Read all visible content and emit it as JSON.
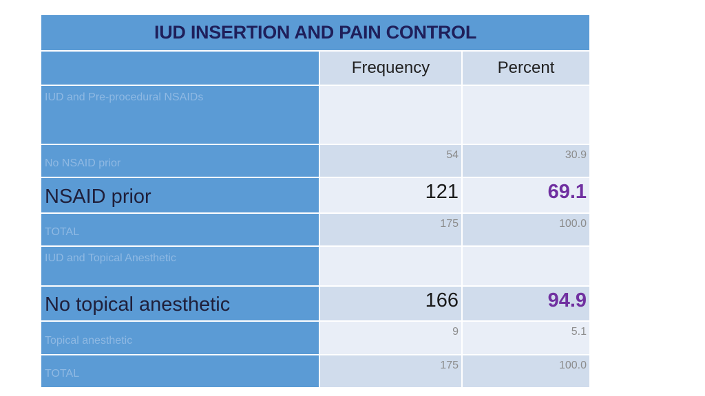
{
  "table": {
    "title": "IUD INSERTION AND PAIN CONTROL",
    "headers": {
      "frequency": "Frequency",
      "percent": "Percent"
    },
    "rows": [
      {
        "label": "IUD and Pre-procedural NSAIDs",
        "frequency": "",
        "percent": ""
      },
      {
        "label": "No NSAID prior",
        "frequency": "54",
        "percent": "30.9"
      },
      {
        "label": "NSAID prior",
        "frequency": "121",
        "percent": "69.1"
      },
      {
        "label": "TOTAL",
        "frequency": "175",
        "percent": "100.0"
      },
      {
        "label": "IUD and Topical Anesthetic",
        "frequency": "",
        "percent": ""
      },
      {
        "label": "No topical anesthetic",
        "frequency": "166",
        "percent": "94.9"
      },
      {
        "label": "Topical anesthetic",
        "frequency": "9",
        "percent": "5.1"
      },
      {
        "label": "TOTAL",
        "frequency": "175",
        "percent": "100.0"
      }
    ]
  },
  "colors": {
    "title_background": "#5b9bd5",
    "label_column": "#5b9bd5",
    "row_light": "#e9eef7",
    "row_dark": "#d0dcec",
    "highlight_percent": "#7030a0"
  }
}
